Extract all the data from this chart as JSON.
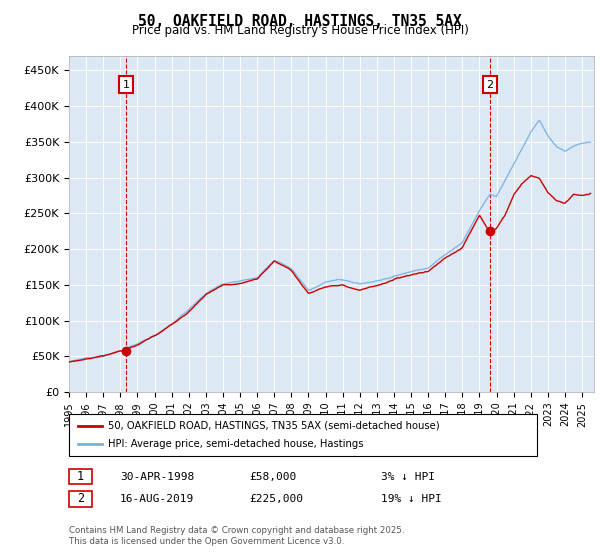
{
  "title_line1": "50, OAKFIELD ROAD, HASTINGS, TN35 5AX",
  "title_line2": "Price paid vs. HM Land Registry's House Price Index (HPI)",
  "ylim": [
    0,
    470000
  ],
  "yticks": [
    0,
    50000,
    100000,
    150000,
    200000,
    250000,
    300000,
    350000,
    400000,
    450000
  ],
  "ytick_labels": [
    "£0",
    "£50K",
    "£100K",
    "£150K",
    "£200K",
    "£250K",
    "£300K",
    "£350K",
    "£400K",
    "£450K"
  ],
  "xlim_start": 1995.0,
  "xlim_end": 2025.7,
  "hpi_color": "#7ab0e0",
  "price_color": "#cc0000",
  "marker1_year": 1998.33,
  "marker1_value": 58000,
  "marker1_label": "1",
  "marker2_year": 2019.62,
  "marker2_value": 225000,
  "marker2_label": "2",
  "legend_line1": "50, OAKFIELD ROAD, HASTINGS, TN35 5AX (semi-detached house)",
  "legend_line2": "HPI: Average price, semi-detached house, Hastings",
  "annotation1_date": "30-APR-1998",
  "annotation1_price": "£58,000",
  "annotation1_hpi": "3% ↓ HPI",
  "annotation2_date": "16-AUG-2019",
  "annotation2_price": "£225,000",
  "annotation2_hpi": "19% ↓ HPI",
  "footnote": "Contains HM Land Registry data © Crown copyright and database right 2025.\nThis data is licensed under the Open Government Licence v3.0.",
  "background_color": "#ffffff",
  "plot_bg_color": "#dce9f5",
  "grid_color": "#ffffff"
}
